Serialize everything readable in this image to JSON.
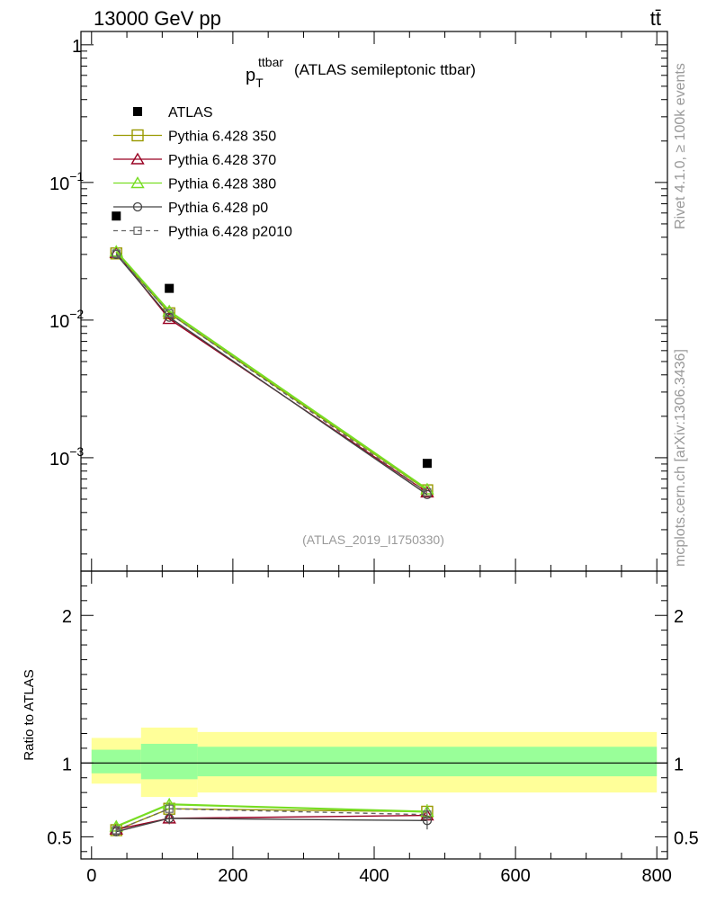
{
  "header": {
    "left": "13000 GeV pp",
    "right": "tt̄"
  },
  "side": {
    "rivet": "Rivet 4.1.0, ≥ 100k events",
    "mcplots": "mcplots.cern.ch [arXiv:1306.3436]"
  },
  "chart_data": [
    {
      "type": "scatter",
      "panel": "main",
      "title_main": "p",
      "title_sub": "T",
      "title_sup": "ttbar",
      "title_rest": "(ATLAS semileptonic ttbar)",
      "analysis_id": "(ATLAS_2019_I1750330)",
      "yscale": "log",
      "ylim": [
        0.00015,
        1.25
      ],
      "xlim": [
        -15,
        815
      ],
      "y_ticks": [
        {
          "value": 1,
          "label": "1"
        },
        {
          "value": 0.1,
          "label": "10",
          "exp": "−1"
        },
        {
          "value": 0.01,
          "label": "10",
          "exp": "−2"
        },
        {
          "value": 0.001,
          "label": "10",
          "exp": "−3"
        }
      ],
      "legend": [
        {
          "name": "ATLAS",
          "color": "#000000",
          "marker": "filled-square",
          "line": "none"
        },
        {
          "name": "Pythia 6.428 350",
          "color": "#999900",
          "marker": "open-square",
          "line": "solid"
        },
        {
          "name": "Pythia 6.428 370",
          "color": "#990022",
          "marker": "open-triangle",
          "line": "solid"
        },
        {
          "name": "Pythia 6.428 380",
          "color": "#77dd22",
          "marker": "open-triangle",
          "line": "solid"
        },
        {
          "name": "Pythia 6.428 p0",
          "color": "#444444",
          "marker": "open-circle",
          "line": "solid"
        },
        {
          "name": "Pythia 6.428 p2010",
          "color": "#666666",
          "marker": "open-square-small",
          "line": "dashed"
        }
      ],
      "x": [
        35,
        110,
        475
      ],
      "series": [
        {
          "name": "ATLAS",
          "values": [
            0.057,
            0.017,
            0.00091
          ]
        },
        {
          "name": "Pythia 6.428 350",
          "values": [
            0.0305,
            0.0112,
            0.00058
          ]
        },
        {
          "name": "Pythia 6.428 370",
          "values": [
            0.0308,
            0.0102,
            0.00056
          ]
        },
        {
          "name": "Pythia 6.428 380",
          "values": [
            0.0315,
            0.0116,
            0.00059
          ]
        },
        {
          "name": "Pythia 6.428 p0",
          "values": [
            0.03,
            0.0105,
            0.00054
          ]
        },
        {
          "name": "Pythia 6.428 p2010",
          "values": [
            0.0304,
            0.0112,
            0.00056
          ]
        }
      ]
    },
    {
      "type": "line",
      "panel": "ratio",
      "ylabel": "Ratio to ATLAS",
      "ylim": [
        0.35,
        2.3
      ],
      "xlim": [
        -15,
        815
      ],
      "x_ticks": [
        {
          "value": 0,
          "label": "0"
        },
        {
          "value": 200,
          "label": "200"
        },
        {
          "value": 400,
          "label": "400"
        },
        {
          "value": 600,
          "label": "600"
        },
        {
          "value": 800,
          "label": "800"
        }
      ],
      "y_ticks": [
        {
          "value": 0.5,
          "label": "0.5"
        },
        {
          "value": 1,
          "label": "1"
        },
        {
          "value": 2,
          "label": "2"
        }
      ],
      "bands": [
        {
          "x0": 0,
          "x1": 70,
          "inner": [
            0.93,
            1.09
          ],
          "outer": [
            0.86,
            1.17
          ]
        },
        {
          "x0": 70,
          "x1": 150,
          "inner": [
            0.89,
            1.13
          ],
          "outer": [
            0.77,
            1.24
          ]
        },
        {
          "x0": 150,
          "x1": 800,
          "inner": [
            0.91,
            1.11
          ],
          "outer": [
            0.8,
            1.21
          ]
        }
      ],
      "x": [
        35,
        110,
        475
      ],
      "series": [
        {
          "name": "Pythia 6.428 350",
          "values": [
            0.545,
            0.69,
            0.67
          ],
          "errors": [
            0.03,
            0.04,
            0.05
          ]
        },
        {
          "name": "Pythia 6.428 370",
          "values": [
            0.55,
            0.625,
            0.645
          ],
          "errors": [
            0.03,
            0.03,
            0.04
          ]
        },
        {
          "name": "Pythia 6.428 380",
          "values": [
            0.57,
            0.72,
            0.67
          ],
          "errors": [
            0.03,
            0.04,
            0.05
          ]
        },
        {
          "name": "Pythia 6.428 p0",
          "values": [
            0.535,
            0.625,
            0.61
          ],
          "errors": [
            0.03,
            0.04,
            0.06
          ]
        },
        {
          "name": "Pythia 6.428 p2010",
          "values": [
            0.545,
            0.69,
            0.65
          ],
          "errors": [
            0.03,
            0.04,
            0.05
          ]
        }
      ]
    }
  ]
}
